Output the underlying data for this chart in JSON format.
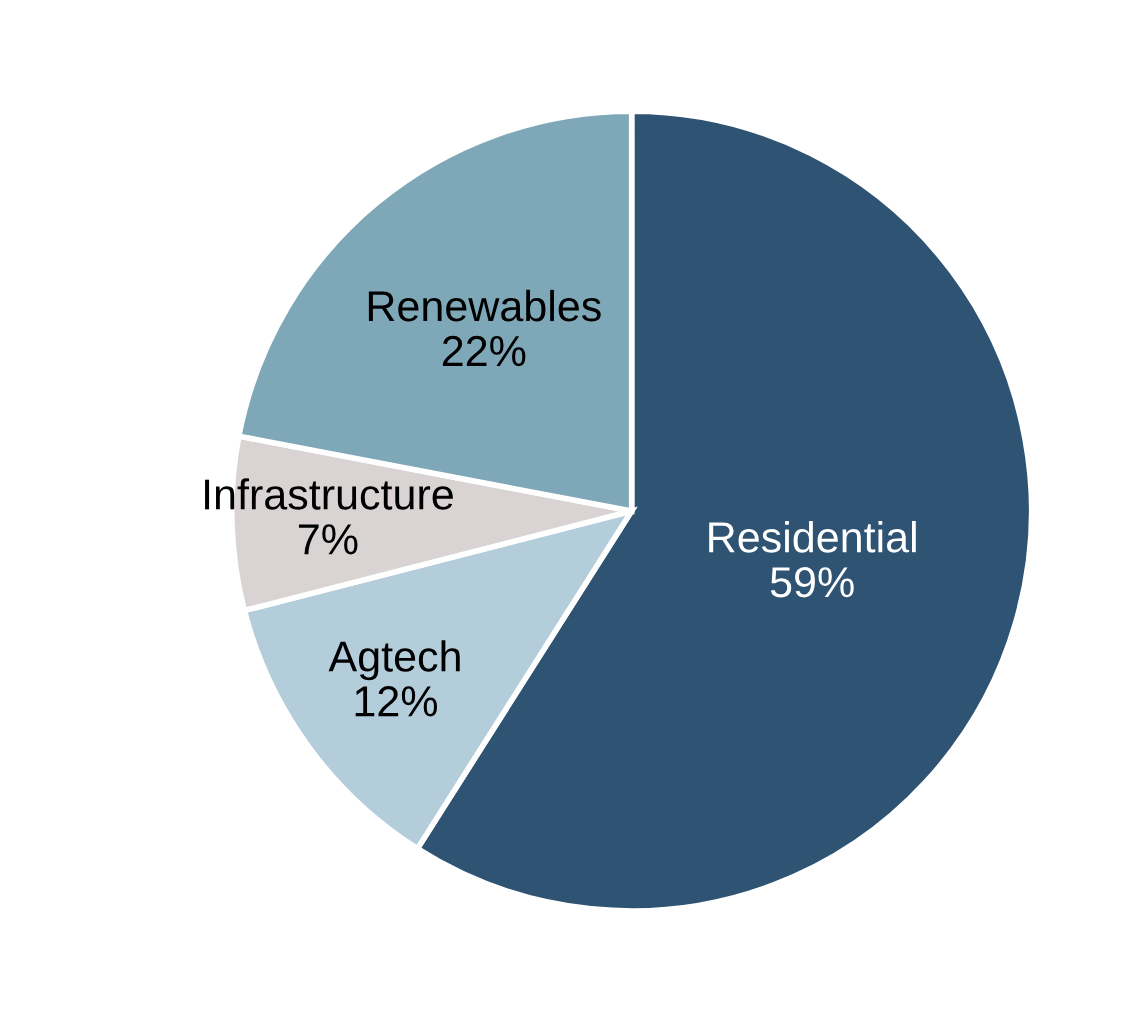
{
  "chart_data": {
    "type": "pie",
    "categories": [
      "Residential",
      "Agtech",
      "Infrastructure",
      "Renewables"
    ],
    "values": [
      59,
      12,
      7,
      22
    ],
    "value_labels": [
      "59%",
      "12%",
      "7%",
      "22%"
    ],
    "colors": [
      "#2f5373",
      "#b4cddb",
      "#d9d4d3",
      "#7ea7b8"
    ],
    "legend": false
  }
}
